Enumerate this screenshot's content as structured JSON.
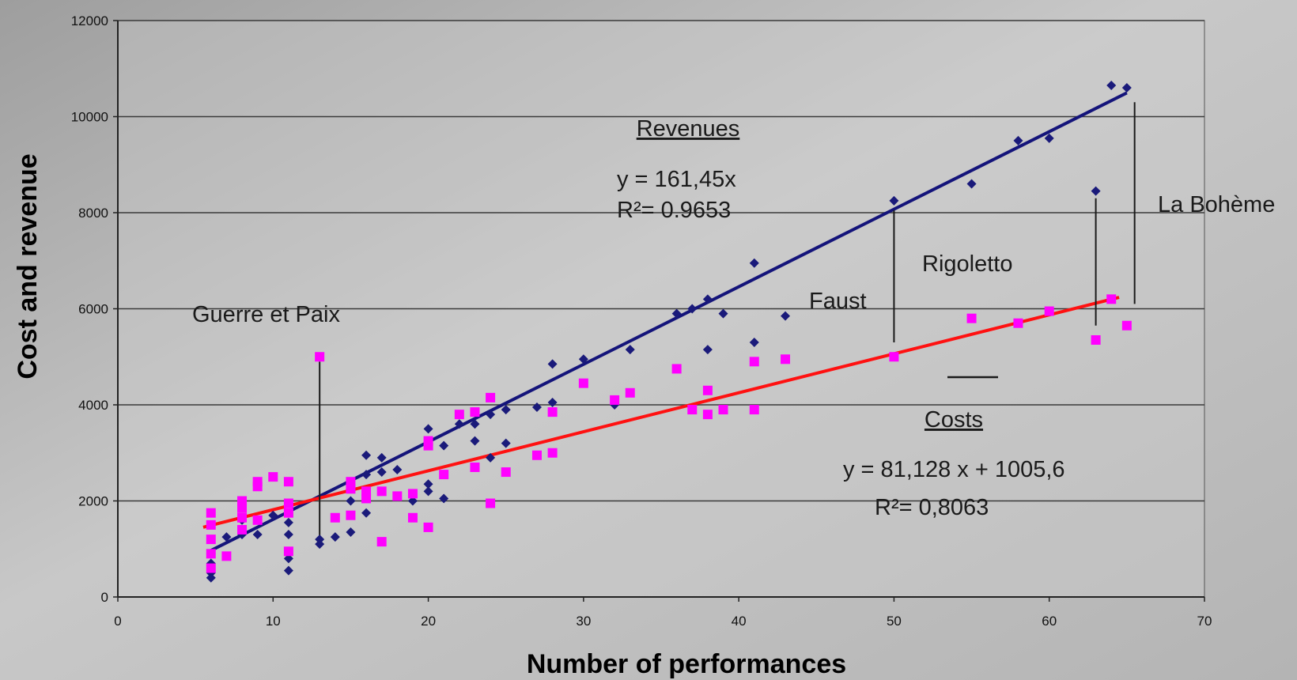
{
  "chart_data": {
    "type": "scatter",
    "xlabel": "Number of performances",
    "ylabel": "Cost and revenue",
    "xlim": [
      0,
      70
    ],
    "ylim": [
      0,
      12000
    ],
    "xticks": [
      0,
      10,
      20,
      30,
      40,
      50,
      60,
      70
    ],
    "yticks": [
      0,
      2000,
      4000,
      6000,
      8000,
      10000,
      12000
    ],
    "horizontal_grid": true,
    "colors": {
      "revenues": "#1a1a7a",
      "costs": "#ff00ff",
      "revenue_trend": "#14147a",
      "cost_trend": "#ff1111"
    },
    "series": [
      {
        "name": "Revenues",
        "marker": "diamond",
        "points": [
          [
            6,
            400
          ],
          [
            6,
            500
          ],
          [
            6,
            700
          ],
          [
            6,
            900
          ],
          [
            7,
            1250
          ],
          [
            8,
            1300
          ],
          [
            8,
            1600
          ],
          [
            9,
            1300
          ],
          [
            10,
            1700
          ],
          [
            11,
            550
          ],
          [
            11,
            800
          ],
          [
            11,
            1300
          ],
          [
            11,
            1550
          ],
          [
            13,
            1100
          ],
          [
            13,
            1200
          ],
          [
            14,
            1250
          ],
          [
            15,
            1350
          ],
          [
            15,
            2000
          ],
          [
            16,
            1750
          ],
          [
            16,
            2550
          ],
          [
            16,
            2950
          ],
          [
            17,
            2600
          ],
          [
            17,
            2900
          ],
          [
            18,
            2650
          ],
          [
            19,
            2000
          ],
          [
            20,
            2200
          ],
          [
            20,
            2350
          ],
          [
            20,
            3500
          ],
          [
            21,
            2050
          ],
          [
            21,
            3150
          ],
          [
            22,
            3600
          ],
          [
            23,
            3250
          ],
          [
            23,
            3600
          ],
          [
            24,
            2900
          ],
          [
            24,
            3800
          ],
          [
            25,
            3200
          ],
          [
            25,
            3900
          ],
          [
            27,
            3950
          ],
          [
            28,
            4050
          ],
          [
            28,
            4850
          ],
          [
            30,
            4950
          ],
          [
            32,
            4000
          ],
          [
            33,
            5150
          ],
          [
            36,
            5900
          ],
          [
            37,
            6000
          ],
          [
            38,
            5150
          ],
          [
            38,
            6200
          ],
          [
            39,
            5900
          ],
          [
            41,
            5300
          ],
          [
            41,
            6950
          ],
          [
            43,
            5850
          ],
          [
            50,
            8250
          ],
          [
            55,
            8600
          ],
          [
            58,
            9500
          ],
          [
            60,
            9550
          ],
          [
            63,
            8450
          ],
          [
            64,
            10650
          ],
          [
            65,
            10600
          ]
        ]
      },
      {
        "name": "Costs",
        "marker": "square",
        "points": [
          [
            6,
            600
          ],
          [
            6,
            900
          ],
          [
            6,
            1200
          ],
          [
            6,
            1500
          ],
          [
            6,
            1750
          ],
          [
            7,
            850
          ],
          [
            8,
            1400
          ],
          [
            8,
            1650
          ],
          [
            8,
            1850
          ],
          [
            8,
            2000
          ],
          [
            9,
            1600
          ],
          [
            9,
            2300
          ],
          [
            9,
            2400
          ],
          [
            10,
            2500
          ],
          [
            11,
            950
          ],
          [
            11,
            1750
          ],
          [
            11,
            1950
          ],
          [
            11,
            2400
          ],
          [
            13,
            5000
          ],
          [
            14,
            1650
          ],
          [
            15,
            1700
          ],
          [
            15,
            2250
          ],
          [
            15,
            2400
          ],
          [
            16,
            2050
          ],
          [
            16,
            2200
          ],
          [
            17,
            1150
          ],
          [
            17,
            2200
          ],
          [
            18,
            2100
          ],
          [
            19,
            1650
          ],
          [
            19,
            2150
          ],
          [
            20,
            1450
          ],
          [
            20,
            3150
          ],
          [
            20,
            3250
          ],
          [
            21,
            2550
          ],
          [
            22,
            3800
          ],
          [
            23,
            2700
          ],
          [
            23,
            3850
          ],
          [
            24,
            1950
          ],
          [
            24,
            4150
          ],
          [
            25,
            2600
          ],
          [
            27,
            2950
          ],
          [
            28,
            3000
          ],
          [
            28,
            3850
          ],
          [
            30,
            4450
          ],
          [
            32,
            4100
          ],
          [
            33,
            4250
          ],
          [
            36,
            4750
          ],
          [
            37,
            3900
          ],
          [
            38,
            3800
          ],
          [
            38,
            4300
          ],
          [
            39,
            3900
          ],
          [
            41,
            3900
          ],
          [
            41,
            4900
          ],
          [
            43,
            4950
          ],
          [
            50,
            5000
          ],
          [
            55,
            5800
          ],
          [
            58,
            5700
          ],
          [
            60,
            5950
          ],
          [
            63,
            5350
          ],
          [
            64,
            6200
          ],
          [
            65,
            5650
          ]
        ]
      }
    ],
    "trendlines": [
      {
        "name": "Revenues",
        "slope": 161.45,
        "intercept": 0,
        "x_range": [
          6,
          65
        ]
      },
      {
        "name": "Costs",
        "slope": 81.128,
        "intercept": 1005.6,
        "x_range": [
          5.5,
          64.5
        ]
      }
    ],
    "annotations": {
      "revenue_label": "Revenues",
      "revenue_equation": "y = 161,45x",
      "revenue_r2": "R²= 0.9653",
      "cost_label": "Costs",
      "cost_equation": "y = 81,128 x + 1005,6",
      "cost_r2": "R²= 0,8063",
      "operas": [
        {
          "name": "Guerre et Paix",
          "x": 13,
          "y_low": 1150,
          "y_high": 4900
        },
        {
          "name": "Faust",
          "x": 50,
          "y_low": 5300,
          "y_high": 8050
        },
        {
          "name": "Rigoletto",
          "x": 63,
          "y_low": 5650,
          "y_high": 8300
        },
        {
          "name": "La Bohème",
          "x": 65.5,
          "y_low": 6100,
          "y_high": 10300
        }
      ]
    }
  }
}
